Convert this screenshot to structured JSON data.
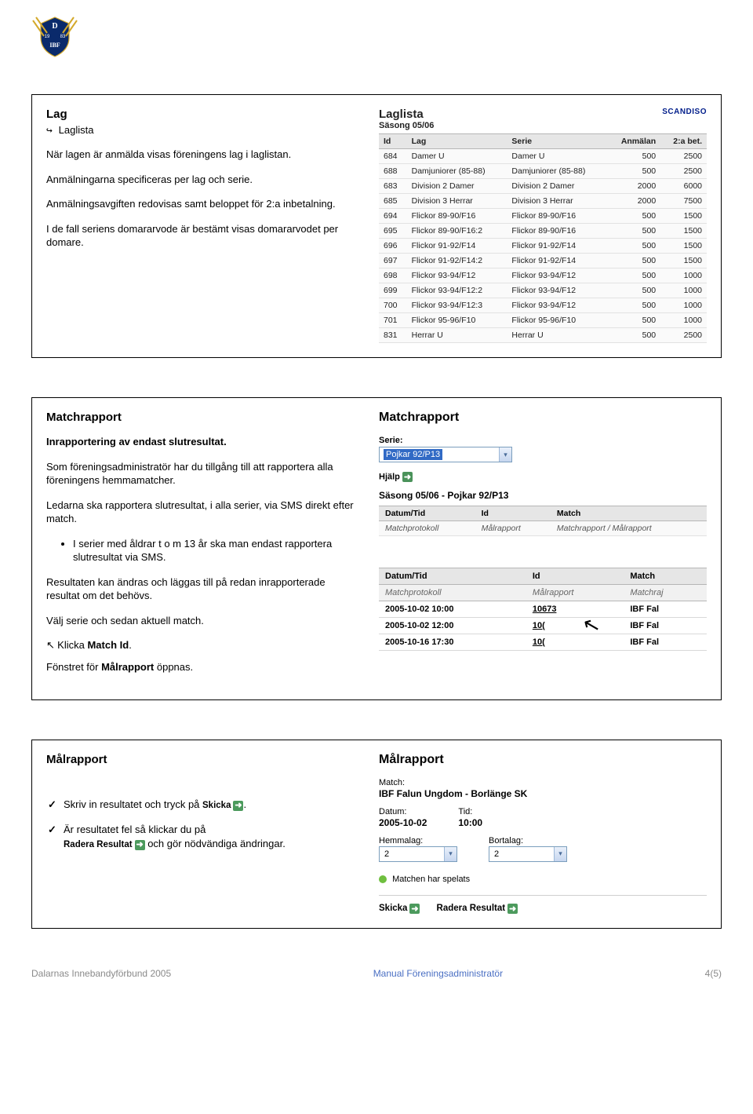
{
  "colors": {
    "link_blue": "#001d8a",
    "grid_header_bg": "#e6e6e6",
    "grid_border": "#b6b6b6",
    "dropdown_border": "#7b9ebd",
    "dropdown_selected_bg": "#316ac5",
    "status_green": "#6fbf3f",
    "badge_green": "#4a925a",
    "footer_grey": "#8a8a8a",
    "footer_blue": "#4a6fc3"
  },
  "section_lag": {
    "title": "Lag",
    "subnav": "Laglista",
    "p1": "När lagen är anmälda visas föreningens lag i laglistan.",
    "p2": "Anmälningarna specificeras per lag och serie.",
    "p3": "Anmälningsavgiften redovisas samt beloppet för 2:a inbetalning.",
    "p4": "I de fall seriens domararvode är bestämt visas domararvodet per domare.",
    "figure": {
      "title": "Laglista",
      "brand": "SCANDISO",
      "season_label": "Säsong 05/06",
      "columns": [
        "Id",
        "Lag",
        "Serie",
        "Anmälan",
        "2:a bet."
      ],
      "rows": [
        [
          "684",
          "Damer U",
          "Damer U",
          "500",
          "2500"
        ],
        [
          "688",
          "Damjuniorer (85-88)",
          "Damjuniorer (85-88)",
          "500",
          "2500"
        ],
        [
          "683",
          "Division 2 Damer",
          "Division 2 Damer",
          "2000",
          "6000"
        ],
        [
          "685",
          "Division 3 Herrar",
          "Division 3 Herrar",
          "2000",
          "7500"
        ],
        [
          "694",
          "Flickor 89-90/F16",
          "Flickor 89-90/F16",
          "500",
          "1500"
        ],
        [
          "695",
          "Flickor 89-90/F16:2",
          "Flickor 89-90/F16",
          "500",
          "1500"
        ],
        [
          "696",
          "Flickor 91-92/F14",
          "Flickor 91-92/F14",
          "500",
          "1500"
        ],
        [
          "697",
          "Flickor 91-92/F14:2",
          "Flickor 91-92/F14",
          "500",
          "1500"
        ],
        [
          "698",
          "Flickor 93-94/F12",
          "Flickor 93-94/F12",
          "500",
          "1000"
        ],
        [
          "699",
          "Flickor 93-94/F12:2",
          "Flickor 93-94/F12",
          "500",
          "1000"
        ],
        [
          "700",
          "Flickor 93-94/F12:3",
          "Flickor 93-94/F12",
          "500",
          "1000"
        ],
        [
          "701",
          "Flickor 95-96/F10",
          "Flickor 95-96/F10",
          "500",
          "1000"
        ],
        [
          "831",
          "Herrar U",
          "Herrar U",
          "500",
          "2500"
        ]
      ]
    }
  },
  "section_match": {
    "title": "Matchrapport",
    "p1": "Inrapportering av endast slutresultat.",
    "p2": "Som föreningsadministratör har du tillgång till att rapportera alla föreningens hemmamatcher.",
    "p3": "Ledarna ska rapportera slutresultat, i alla serier, via SMS direkt efter match.",
    "bullet1": "I serier med åldrar t o m 13 år ska man endast rapportera slutresultat via SMS.",
    "p4": "Resultaten kan ändras och läggas till på redan inrapporterade resultat om det behövs.",
    "p5": "Välj serie och sedan aktuell match.",
    "click_prefix": "Klicka ",
    "click_target": "Match Id",
    "click_suffix": ".",
    "p6_a": "Fönstret för ",
    "p6_b": "Målrapport",
    "p6_c": " öppnas.",
    "figure_top": {
      "title": "Matchrapport",
      "serie_label": "Serie:",
      "serie_selected": "Pojkar 92/P13",
      "help_label": "Hjälp",
      "season_serie": "Säsong 05/06 - Pojkar 92/P13",
      "columns": [
        "Datum/Tid",
        "Id",
        "Match"
      ],
      "second_row": [
        "Matchprotokoll",
        "Målrapport",
        "Matchrapport / Målrapport"
      ]
    },
    "figure_bottom": {
      "columns": [
        "Datum/Tid",
        "Id",
        "Match"
      ],
      "second_row": [
        "Matchprotokoll",
        "Målrapport",
        "Matchraj"
      ],
      "rows": [
        [
          "2005-10-02 10:00",
          "10673",
          "IBF Fal"
        ],
        [
          "2005-10-02 12:00",
          "10(",
          "IBF Fal"
        ],
        [
          "2005-10-16 17:30",
          "10(",
          "IBF Fal"
        ]
      ]
    }
  },
  "section_mal": {
    "title": "Målrapport",
    "check1_a": "Skriv in resultatet och tryck på ",
    "check1_btn": "Skicka",
    "check1_b": ".",
    "check2_a": "Är resultatet fel så klickar du på ",
    "check2_btn": "Radera Resultat",
    "check2_b": " och gör nödvändiga ändringar.",
    "figure": {
      "title": "Målrapport",
      "match_label": "Match:",
      "match_value": "IBF Falun Ungdom - Borlänge SK",
      "datum_label": "Datum:",
      "datum_value": "2005-10-02",
      "tid_label": "Tid:",
      "tid_value": "10:00",
      "hemma_label": "Hemmalag:",
      "hemma_value": "2",
      "borta_label": "Bortalag:",
      "borta_value": "2",
      "status": "Matchen har spelats",
      "btn_skicka": "Skicka",
      "btn_radera": "Radera Resultat"
    }
  },
  "footer": {
    "left": "Dalarnas Innebandyförbund 2005",
    "middle": "Manual Föreningsadministratör",
    "right": "4(5)"
  }
}
